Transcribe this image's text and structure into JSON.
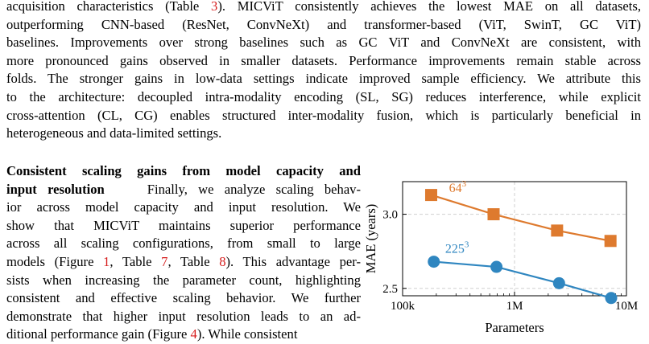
{
  "para1": {
    "l1a": "acquisition characteristics (Table ",
    "l1ref": "3",
    "l1b": "). MICViT consistently achieves the lowest MAE on all datasets,",
    "l2": "outperforming CNN-based (ResNet, ConvNeXt) and transformer-based (ViT, SwinT, GC ViT)",
    "l3": "baselines. Improvements over strong baselines such as GC ViT and ConvNeXt are consistent, with",
    "l4": "more pronounced gains observed in smaller datasets. Performance improvements remain stable across",
    "l5": "folds. The stronger gains in low-data settings indicate improved sample efficiency. We attribute this",
    "l6": "to the architecture: decoupled intra-modality encoding (SL, SG) reduces interference, while explicit",
    "l7": "cross-attention (CL, CG) enables structured inter-modality fusion, which is particularly beneficial in",
    "l8": "heterogeneous and data-limited settings."
  },
  "para2": {
    "heading1": "Consistent scaling gains from model capacity and",
    "heading2": "input resolution",
    "l2rest": "Finally, we analyze scaling behav-",
    "l3": "ior across model capacity and input resolution.  We",
    "l4": "show that MICViT maintains superior performance",
    "l5": "across all scaling configurations, from small to large",
    "l6a": "models (Figure ",
    "l6ref1": "1",
    "l6b": ", Table ",
    "l6ref2": "7",
    "l6c": ", Table ",
    "l6ref3": "8",
    "l6d": "). This advantage per-",
    "l7": "sists when increasing the parameter count, highlighting",
    "l8": "consistent and effective scaling behavior. We further",
    "l9": "demonstrate that higher input resolution leads to an ad-",
    "l10a": "ditional performance gain (Figure ",
    "l10ref": "4",
    "l10b": "). While consistent"
  },
  "colors": {
    "ref": "#d61c1c",
    "orange": "#de7a2e",
    "blue": "#2f86c0"
  },
  "chart_data": {
    "type": "line",
    "xlabel": "Parameters",
    "ylabel": "MAE (years)",
    "xscale": "log",
    "xlim": [
      100000,
      10000000
    ],
    "ylim": [
      2.45,
      3.22
    ],
    "x_ticks": [
      "100k",
      "1M",
      "10M"
    ],
    "y_ticks": [
      "2.5",
      "3.0"
    ],
    "grid": true,
    "series": [
      {
        "name": "64³",
        "label_base": "64",
        "label_exp": "3",
        "marker": "square",
        "color": "#de7a2e",
        "x": [
          180000,
          650000,
          2400000,
          7200000
        ],
        "y": [
          3.13,
          3.0,
          2.89,
          2.82
        ]
      },
      {
        "name": "225³",
        "label_base": "225",
        "label_exp": "3",
        "marker": "circle",
        "color": "#2f86c0",
        "x": [
          190000,
          690000,
          2500000,
          7300000
        ],
        "y": [
          2.68,
          2.645,
          2.535,
          2.435
        ]
      }
    ]
  }
}
